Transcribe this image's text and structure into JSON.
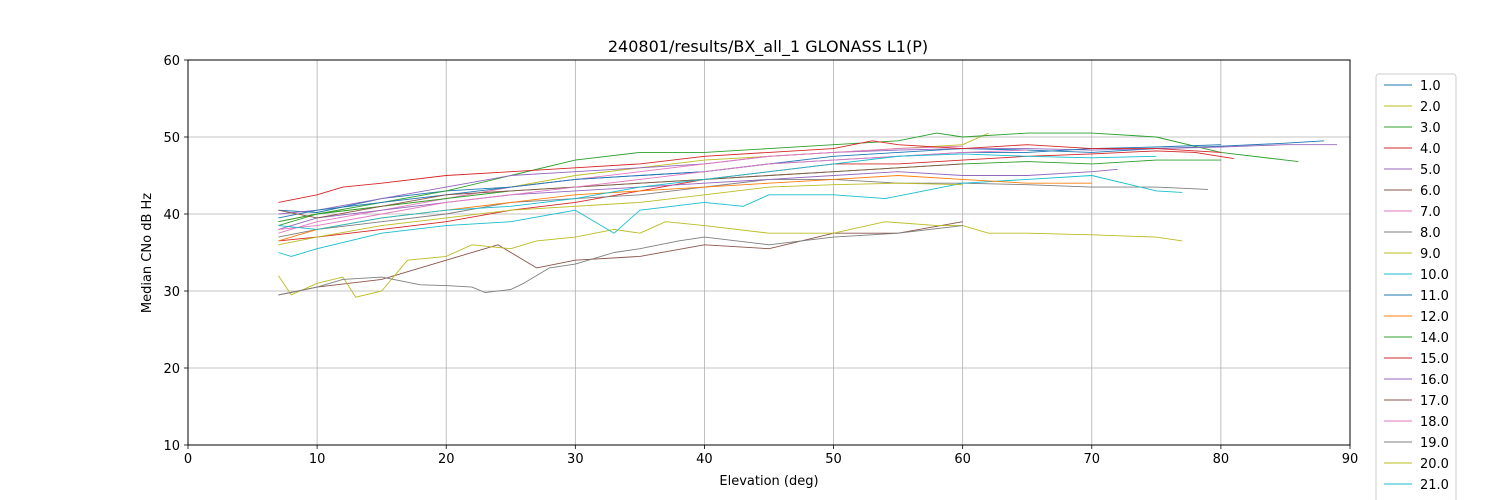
{
  "chart_data": {
    "type": "line",
    "title": "240801/results/BX_all_1 GLONASS L1(P)",
    "xlabel": "Elevation (deg)",
    "ylabel": "Median CNo dB Hz",
    "xlim": [
      0,
      90
    ],
    "ylim": [
      10,
      60
    ],
    "xticks": [
      0,
      10,
      20,
      30,
      40,
      50,
      60,
      70,
      80,
      90
    ],
    "yticks": [
      10,
      20,
      30,
      40,
      50,
      60
    ],
    "grid": true,
    "legend_position": "right",
    "series": [
      {
        "name": "1.0",
        "color": "#1f77b4",
        "x": [
          7,
          10,
          15,
          20,
          25,
          30,
          35,
          40,
          45,
          50,
          55,
          60,
          65,
          70,
          75,
          80,
          85,
          88
        ],
        "y": [
          40.5,
          40.2,
          42.0,
          43.0,
          43.5,
          44.5,
          45.0,
          45.5,
          46.5,
          47.5,
          48.0,
          48.5,
          48.3,
          48.0,
          48.5,
          48.8,
          49.2,
          49.5
        ]
      },
      {
        "name": "2.0",
        "color": "#bcbd22",
        "x": [
          7,
          10,
          15,
          20,
          25,
          30,
          35,
          40,
          45,
          50,
          55,
          60,
          62
        ],
        "y": [
          39.0,
          40.0,
          41.0,
          42.0,
          43.5,
          45.0,
          46.0,
          47.0,
          47.5,
          48.0,
          48.5,
          49.0,
          50.5
        ]
      },
      {
        "name": "3.0",
        "color": "#2ca02c",
        "x": [
          7,
          10,
          15,
          20,
          25,
          30,
          35,
          40,
          45,
          50,
          55,
          58,
          60,
          65,
          70,
          75,
          80,
          85,
          86
        ],
        "y": [
          38.5,
          40.0,
          41.5,
          43.0,
          45.0,
          47.0,
          48.0,
          48.0,
          48.5,
          49.0,
          49.5,
          50.5,
          50.0,
          50.5,
          50.5,
          50.0,
          48.0,
          47.0,
          46.8
        ]
      },
      {
        "name": "4.0",
        "color": "#d62728",
        "x": [
          7,
          10,
          15,
          20,
          25,
          30,
          35,
          40,
          45,
          50,
          55,
          60,
          65,
          70,
          75,
          78,
          81
        ],
        "y": [
          36.5,
          37.0,
          38.0,
          39.0,
          40.5,
          41.5,
          43.0,
          44.5,
          45.5,
          46.5,
          46.5,
          47.0,
          47.5,
          47.8,
          48.2,
          48.0,
          47.2
        ]
      },
      {
        "name": "5.0",
        "color": "#9467bd",
        "x": [
          7,
          10,
          15,
          20,
          25,
          30,
          35,
          40,
          45,
          50,
          55,
          60,
          65,
          70,
          75,
          80,
          85,
          89
        ],
        "y": [
          40.0,
          40.5,
          42.0,
          43.5,
          45.0,
          45.5,
          46.0,
          46.5,
          47.5,
          48.0,
          48.3,
          48.5,
          48.5,
          48.3,
          48.5,
          48.7,
          49.0,
          49.0
        ]
      },
      {
        "name": "6.0",
        "color": "#8c564b",
        "x": [
          7,
          10,
          15,
          20,
          24,
          27,
          30,
          35,
          40,
          45,
          50,
          55,
          60
        ],
        "y": [
          29.5,
          30.5,
          31.5,
          34.0,
          36.0,
          33.0,
          34.0,
          34.5,
          36.0,
          35.5,
          37.5,
          37.5,
          39.0
        ]
      },
      {
        "name": "7.0",
        "color": "#e377c2",
        "x": [
          7,
          10,
          15,
          20,
          25,
          30,
          35,
          40,
          45,
          50,
          55,
          60
        ],
        "y": [
          37.5,
          39.0,
          40.5,
          42.0,
          43.5,
          44.5,
          45.5,
          46.5,
          47.5,
          48.0,
          48.5,
          48.8
        ]
      },
      {
        "name": "8.0",
        "color": "#7f7f7f",
        "x": [
          7,
          10,
          15,
          20,
          25,
          30,
          35,
          40,
          45,
          50,
          55,
          60,
          65,
          70,
          75,
          79
        ],
        "y": [
          37.0,
          38.0,
          39.0,
          40.0,
          41.5,
          42.0,
          42.5,
          43.5,
          44.5,
          44.5,
          44.0,
          44.0,
          43.8,
          43.5,
          43.5,
          43.2
        ]
      },
      {
        "name": "9.0",
        "color": "#bcbd22",
        "x": [
          7,
          8,
          10,
          12,
          13,
          15,
          17,
          20,
          22,
          25,
          27,
          30,
          33,
          35,
          37,
          40,
          45,
          50,
          54,
          58,
          60,
          62,
          65,
          70,
          75,
          77
        ],
        "y": [
          32.0,
          29.5,
          31.0,
          31.8,
          29.2,
          30.0,
          34.0,
          34.5,
          36.0,
          35.5,
          36.5,
          37.0,
          38.0,
          37.5,
          39.0,
          38.5,
          37.5,
          37.5,
          39.0,
          38.5,
          38.5,
          37.5,
          37.5,
          37.3,
          37.0,
          36.5
        ]
      },
      {
        "name": "10.0",
        "color": "#17becf",
        "x": [
          7,
          8,
          10,
          15,
          20,
          25,
          30,
          33,
          35,
          40,
          43,
          45,
          50,
          54,
          57,
          60,
          65,
          70,
          75,
          77
        ],
        "y": [
          35.0,
          34.5,
          35.5,
          37.5,
          38.5,
          39.0,
          40.5,
          37.5,
          40.5,
          41.5,
          41.0,
          42.5,
          42.5,
          42.0,
          43.0,
          44.0,
          44.5,
          45.0,
          43.0,
          42.8
        ]
      },
      {
        "name": "11.0",
        "color": "#1f77b4",
        "x": [
          7,
          10,
          15,
          20,
          25,
          30,
          35,
          40,
          45,
          50,
          55,
          60,
          65,
          70,
          75,
          80
        ],
        "y": [
          39.5,
          40.5,
          41.5,
          42.5,
          43.5,
          44.5,
          45.0,
          45.5,
          46.5,
          47.0,
          47.5,
          48.0,
          48.0,
          48.5,
          48.7,
          49.0
        ]
      },
      {
        "name": "12.0",
        "color": "#ff7f0e",
        "x": [
          7,
          10,
          15,
          20,
          25,
          30,
          35,
          40,
          45,
          50,
          55,
          60,
          65,
          70
        ],
        "y": [
          36.5,
          38.0,
          39.5,
          40.5,
          41.5,
          42.5,
          43.0,
          43.5,
          44.0,
          44.5,
          45.0,
          44.5,
          44.0,
          44.0
        ]
      },
      {
        "name": "14.0",
        "color": "#2ca02c",
        "x": [
          7,
          10,
          15,
          20,
          25,
          30,
          35,
          40,
          45,
          50,
          55,
          60,
          65,
          70,
          75,
          80
        ],
        "y": [
          39.0,
          40.0,
          41.0,
          42.0,
          43.0,
          43.5,
          44.0,
          44.5,
          45.0,
          45.5,
          46.0,
          46.5,
          46.8,
          46.5,
          47.0,
          47.0
        ]
      },
      {
        "name": "15.0",
        "color": "#d62728",
        "x": [
          7,
          10,
          12,
          15,
          20,
          25,
          30,
          35,
          40,
          45,
          50,
          53,
          55,
          60,
          65,
          70,
          75,
          80
        ],
        "y": [
          41.5,
          42.5,
          43.5,
          44.0,
          45.0,
          45.5,
          46.0,
          46.5,
          47.5,
          48.0,
          48.5,
          49.5,
          49.0,
          48.5,
          49.0,
          48.5,
          48.5,
          48.0
        ]
      },
      {
        "name": "16.0",
        "color": "#9467bd",
        "x": [
          7,
          10,
          15,
          20,
          25,
          30,
          35,
          40,
          45,
          50,
          55,
          60,
          65,
          70,
          72
        ],
        "y": [
          38.0,
          39.5,
          40.5,
          41.5,
          42.5,
          43.0,
          43.5,
          44.0,
          44.5,
          45.0,
          45.5,
          45.0,
          45.0,
          45.5,
          45.8
        ]
      },
      {
        "name": "17.0",
        "color": "#8c564b",
        "x": [
          7,
          10,
          15,
          20,
          25,
          30,
          35,
          40,
          45,
          50,
          55,
          60
        ],
        "y": [
          40.5,
          39.5,
          41.0,
          42.5,
          43.0,
          43.5,
          44.0,
          44.5,
          45.0,
          45.5,
          46.0,
          46.5
        ]
      },
      {
        "name": "18.0",
        "color": "#e377c2",
        "x": [
          7,
          10,
          15,
          20,
          25,
          30,
          35,
          40,
          45,
          50,
          55,
          60,
          65
        ],
        "y": [
          38.0,
          38.5,
          40.0,
          41.5,
          42.5,
          43.5,
          44.5,
          45.5,
          46.5,
          47.0,
          47.5,
          48.0,
          48.3
        ]
      },
      {
        "name": "19.0",
        "color": "#7f7f7f",
        "x": [
          7,
          8,
          10,
          12,
          15,
          18,
          20,
          22,
          23,
          25,
          26,
          28,
          30,
          33,
          35,
          38,
          40,
          45,
          50,
          55,
          60
        ],
        "y": [
          29.5,
          29.8,
          30.5,
          31.5,
          31.8,
          30.8,
          30.7,
          30.5,
          29.8,
          30.2,
          31.0,
          33.0,
          33.5,
          35.0,
          35.5,
          36.5,
          37.0,
          36.0,
          37.0,
          37.5,
          38.5
        ]
      },
      {
        "name": "20.0",
        "color": "#bcbd22",
        "x": [
          7,
          10,
          15,
          20,
          25,
          30,
          35,
          40,
          45,
          50,
          55,
          60
        ],
        "y": [
          36.0,
          37.0,
          38.5,
          39.5,
          40.5,
          41.0,
          41.5,
          42.5,
          43.5,
          43.8,
          44.0,
          43.8
        ]
      },
      {
        "name": "21.0",
        "color": "#17becf",
        "x": [
          7,
          10,
          15,
          20,
          25,
          30,
          35,
          40,
          45,
          50,
          55,
          60,
          65,
          70,
          75
        ],
        "y": [
          38.5,
          38.0,
          39.5,
          40.5,
          41.0,
          42.0,
          43.5,
          44.5,
          45.5,
          46.5,
          47.5,
          47.8,
          47.5,
          47.3,
          47.5
        ]
      }
    ]
  }
}
